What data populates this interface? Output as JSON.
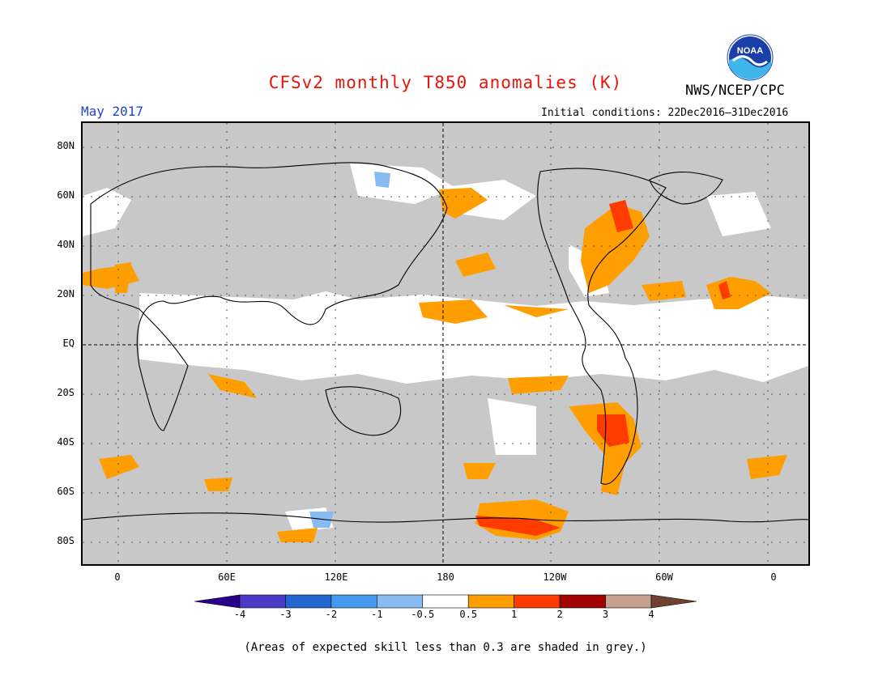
{
  "header": {
    "title": "CFSv2 monthly T850 anomalies (K)",
    "subtitle": "May 2017",
    "agency": "NWS/NCEP/CPC",
    "initial_conditions": "Initial conditions: 22Dec2016–31Dec2016",
    "logo_text": "NOAA"
  },
  "footer": {
    "note": "(Areas of expected skill less than 0.3 are shaded in grey.)"
  },
  "map": {
    "projection": "equirectangular",
    "lon_range": [
      -20,
      380
    ],
    "lat_range": [
      -90,
      90
    ],
    "lat_labels": [
      "80N",
      "60N",
      "40N",
      "20N",
      "EQ",
      "20S",
      "40S",
      "60S",
      "80S"
    ],
    "lat_values": [
      80,
      60,
      40,
      20,
      0,
      -20,
      -40,
      -60,
      -80
    ],
    "lon_labels": [
      "0",
      "60E",
      "120E",
      "180",
      "120W",
      "60W",
      "0"
    ],
    "lon_values": [
      0,
      60,
      120,
      180,
      240,
      300,
      360
    ],
    "low_skill_color": "#c8c8c8",
    "anomaly_regions": [
      {
        "region": "Gulf of Alaska",
        "lon": 195,
        "lat": 58,
        "level": 1
      },
      {
        "region": "Eastern North America",
        "lon": 282,
        "lat": 42,
        "level": 2
      },
      {
        "region": "Tropical Atlantic",
        "lon": 340,
        "lat": 18,
        "level": 1
      },
      {
        "region": "Central South America",
        "lon": 300,
        "lat": -30,
        "level": 1
      },
      {
        "region": "Southern Ocean off Antarctica",
        "lon": 220,
        "lat": -70,
        "level": 1
      }
    ]
  },
  "colorbar": {
    "ticks": [
      "-4",
      "-3",
      "-2",
      "-1",
      "-0.5",
      "0.5",
      "1",
      "2",
      "3",
      "4"
    ],
    "colors": [
      "#2a0088",
      "#4a3ac8",
      "#2266d0",
      "#4499ee",
      "#88bbf2",
      "#ffffff",
      "#ff9e00",
      "#ff3c00",
      "#a00000",
      "#c8a090",
      "#704030"
    ]
  }
}
